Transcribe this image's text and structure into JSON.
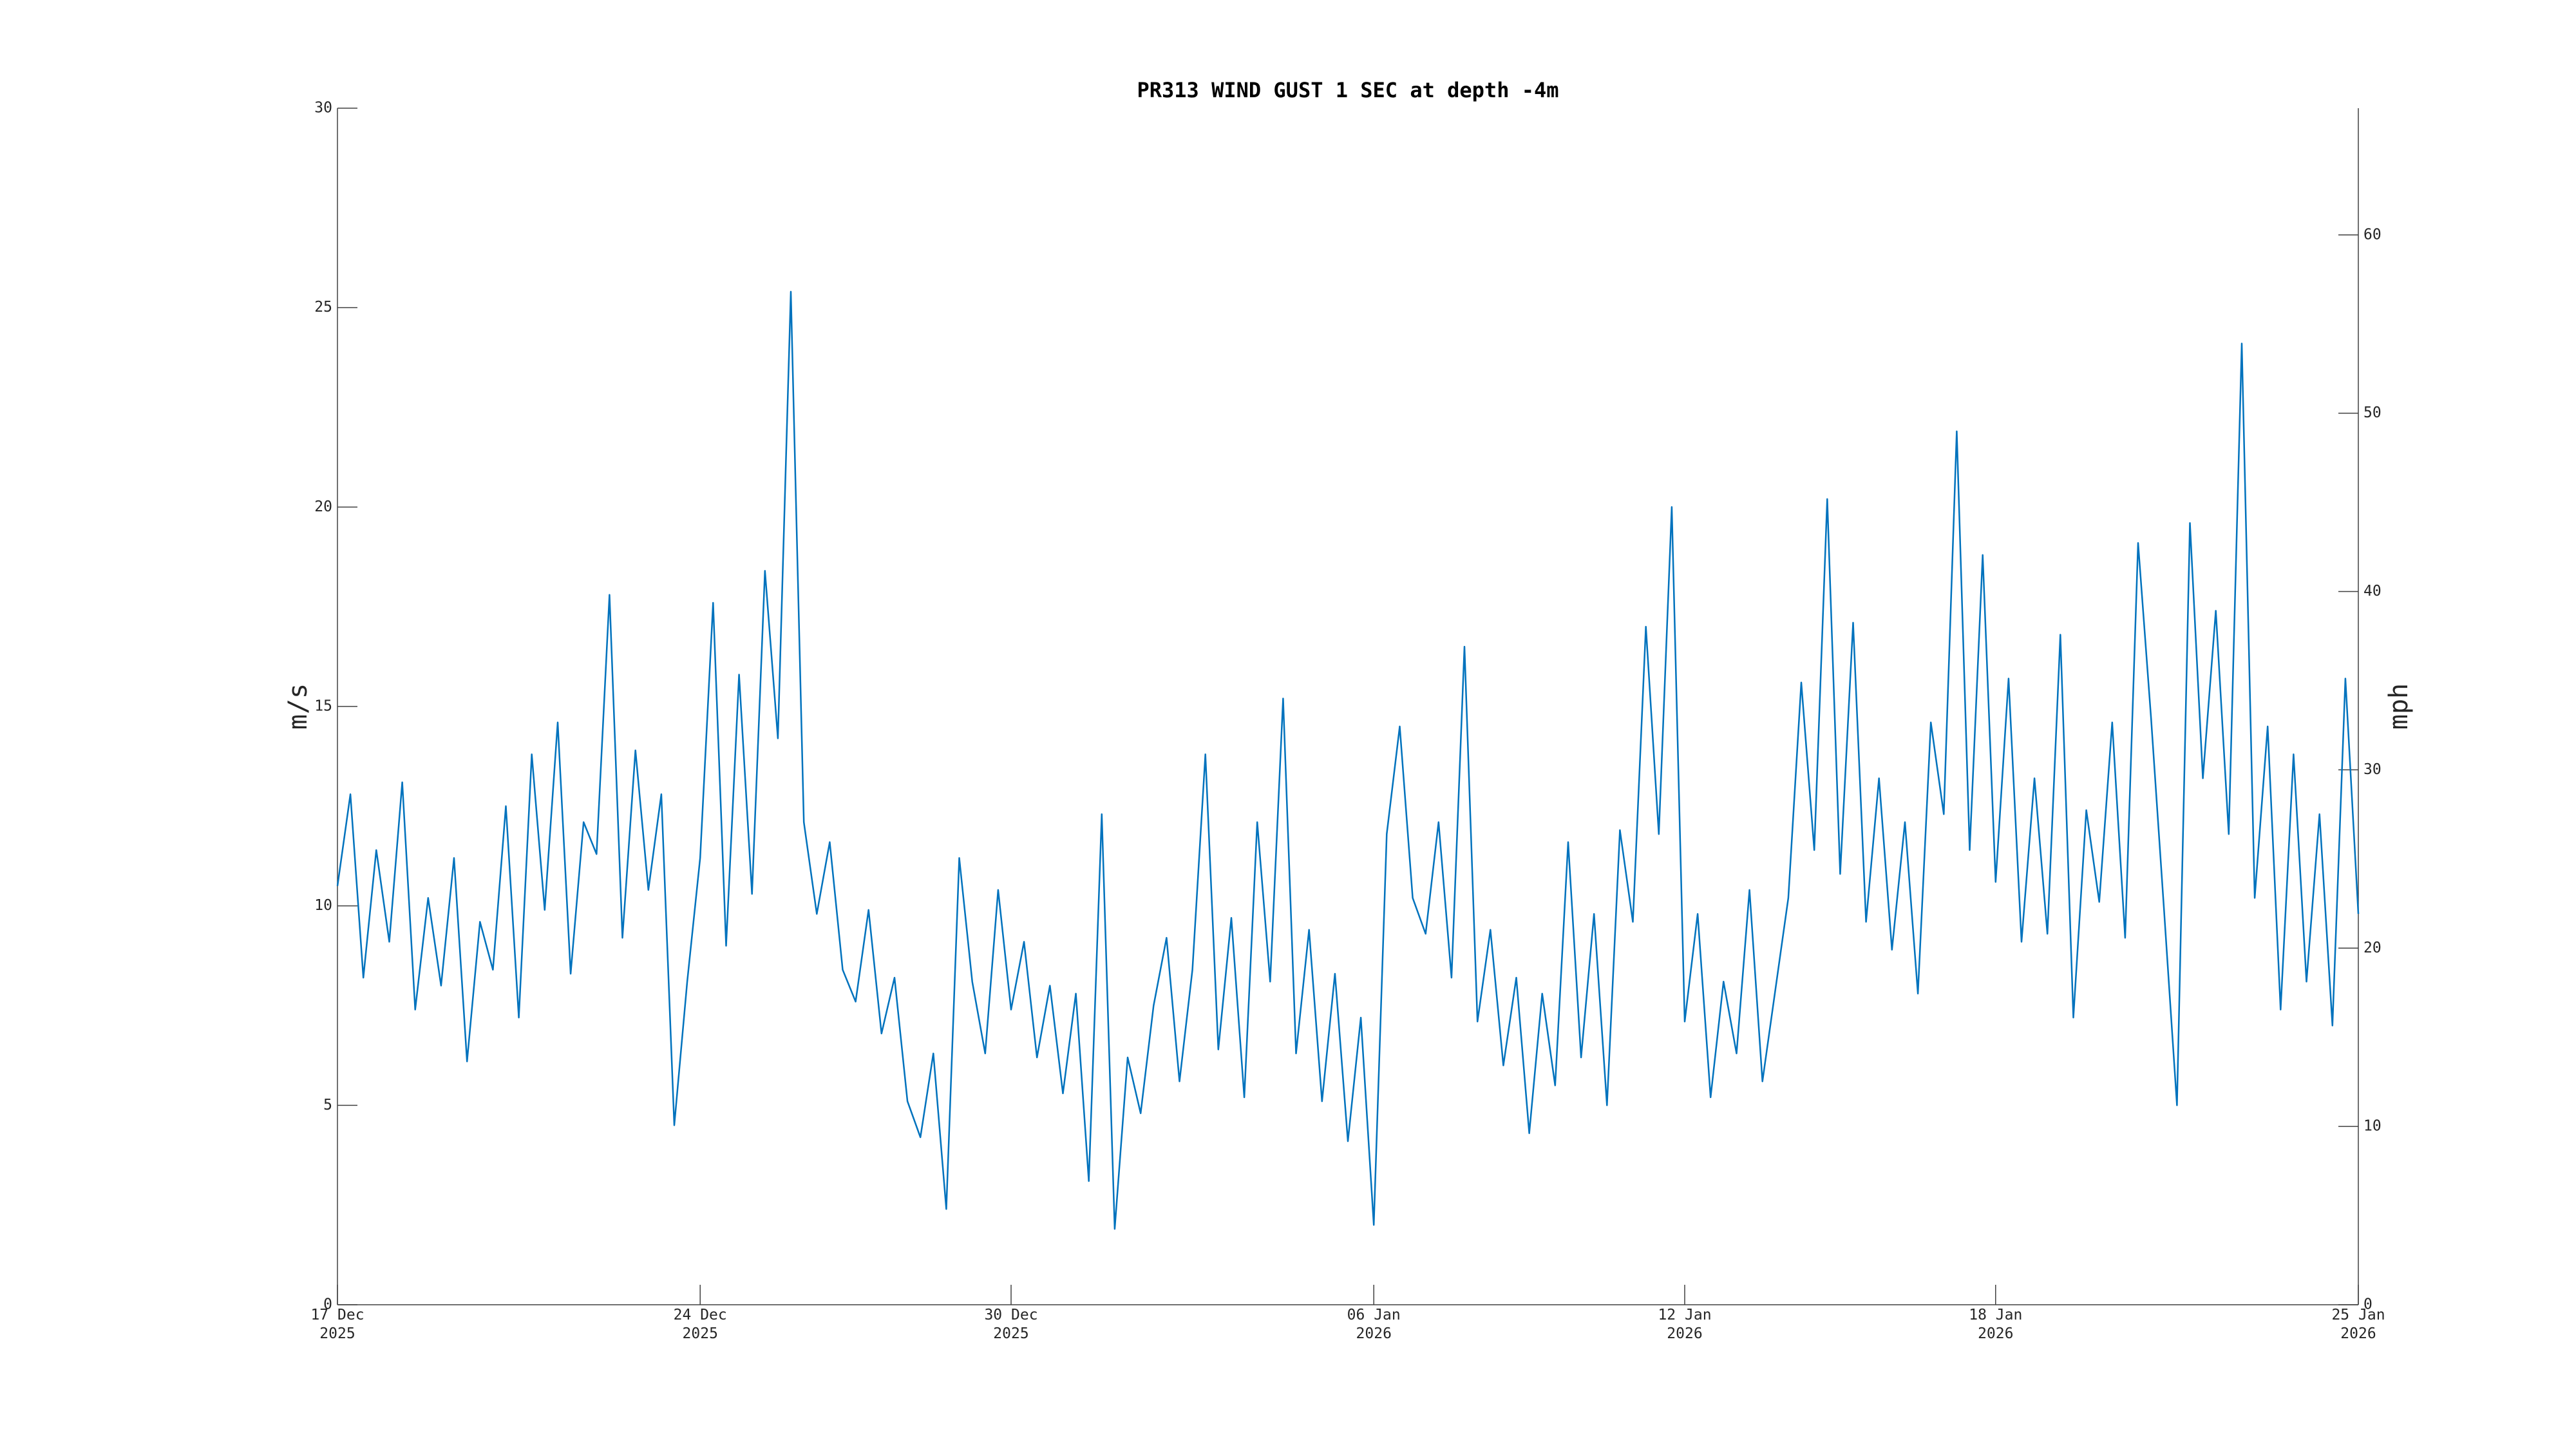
{
  "chart_data": {
    "type": "line",
    "title": "PR313 WIND GUST 1 SEC at depth -4m",
    "ylabel": "m/s",
    "y2label": "mph",
    "color": "#0072bd",
    "xlim": [
      "2025-12-17",
      "2026-01-25"
    ],
    "xticks": [
      {
        "value": "2025-12-17",
        "label": "17 Dec\n2025"
      },
      {
        "value": "2025-12-24",
        "label": "24 Dec\n2025"
      },
      {
        "value": "2025-12-30",
        "label": "30 Dec\n2025"
      },
      {
        "value": "2026-01-06",
        "label": "06 Jan\n2026"
      },
      {
        "value": "2026-01-12",
        "label": "12 Jan\n2026"
      },
      {
        "value": "2026-01-18",
        "label": "18 Jan\n2026"
      },
      {
        "value": "2026-01-25",
        "label": "25 Jan\n2026"
      }
    ],
    "ylim": [
      0,
      30
    ],
    "yticks": [
      0,
      5,
      10,
      15,
      20,
      25,
      30
    ],
    "y2lim": [
      0,
      67.108
    ],
    "y2ticks": [
      0,
      10,
      20,
      30,
      40,
      50,
      60
    ],
    "x": [
      "2025-12-17T00:00",
      "2025-12-17T06:00",
      "2025-12-17T12:00",
      "2025-12-17T18:00",
      "2025-12-18T00:00",
      "2025-12-18T06:00",
      "2025-12-18T12:00",
      "2025-12-18T18:00",
      "2025-12-19T00:00",
      "2025-12-19T06:00",
      "2025-12-19T12:00",
      "2025-12-19T18:00",
      "2025-12-20T00:00",
      "2025-12-20T06:00",
      "2025-12-20T12:00",
      "2025-12-20T18:00",
      "2025-12-21T00:00",
      "2025-12-21T06:00",
      "2025-12-21T12:00",
      "2025-12-21T18:00",
      "2025-12-22T00:00",
      "2025-12-22T06:00",
      "2025-12-22T12:00",
      "2025-12-22T18:00",
      "2025-12-23T00:00",
      "2025-12-23T06:00",
      "2025-12-23T12:00",
      "2025-12-23T18:00",
      "2025-12-24T00:00",
      "2025-12-24T06:00",
      "2025-12-24T12:00",
      "2025-12-24T18:00",
      "2025-12-25T00:00",
      "2025-12-25T06:00",
      "2025-12-25T12:00",
      "2025-12-25T18:00",
      "2025-12-26T00:00",
      "2025-12-26T06:00",
      "2025-12-26T12:00",
      "2025-12-26T18:00",
      "2025-12-27T00:00",
      "2025-12-27T06:00",
      "2025-12-27T12:00",
      "2025-12-27T18:00",
      "2025-12-28T00:00",
      "2025-12-28T06:00",
      "2025-12-28T12:00",
      "2025-12-28T18:00",
      "2025-12-29T00:00",
      "2025-12-29T06:00",
      "2025-12-29T12:00",
      "2025-12-29T18:00",
      "2025-12-30T00:00",
      "2025-12-30T06:00",
      "2025-12-30T12:00",
      "2025-12-30T18:00",
      "2025-12-31T00:00",
      "2025-12-31T06:00",
      "2025-12-31T12:00",
      "2025-12-31T18:00",
      "2026-01-01T00:00",
      "2026-01-01T06:00",
      "2026-01-01T12:00",
      "2026-01-01T18:00",
      "2026-01-02T00:00",
      "2026-01-02T06:00",
      "2026-01-02T12:00",
      "2026-01-02T18:00",
      "2026-01-03T00:00",
      "2026-01-03T06:00",
      "2026-01-03T12:00",
      "2026-01-03T18:00",
      "2026-01-04T00:00",
      "2026-01-04T06:00",
      "2026-01-04T12:00",
      "2026-01-04T18:00",
      "2026-01-05T00:00",
      "2026-01-05T06:00",
      "2026-01-05T12:00",
      "2026-01-05T18:00",
      "2026-01-06T00:00",
      "2026-01-06T06:00",
      "2026-01-06T12:00",
      "2026-01-06T18:00",
      "2026-01-07T00:00",
      "2026-01-07T06:00",
      "2026-01-07T12:00",
      "2026-01-07T18:00",
      "2026-01-08T00:00",
      "2026-01-08T06:00",
      "2026-01-08T12:00",
      "2026-01-08T18:00",
      "2026-01-09T00:00",
      "2026-01-09T06:00",
      "2026-01-09T12:00",
      "2026-01-09T18:00",
      "2026-01-10T00:00",
      "2026-01-10T06:00",
      "2026-01-10T12:00",
      "2026-01-10T18:00",
      "2026-01-11T00:00",
      "2026-01-11T06:00",
      "2026-01-11T12:00",
      "2026-01-11T18:00",
      "2026-01-12T00:00",
      "2026-01-12T06:00",
      "2026-01-12T12:00",
      "2026-01-12T18:00",
      "2026-01-13T00:00",
      "2026-01-13T06:00",
      "2026-01-13T12:00",
      "2026-01-13T18:00",
      "2026-01-14T00:00",
      "2026-01-14T06:00",
      "2026-01-14T12:00",
      "2026-01-14T18:00",
      "2026-01-15T00:00",
      "2026-01-15T06:00",
      "2026-01-15T12:00",
      "2026-01-15T18:00",
      "2026-01-16T00:00",
      "2026-01-16T06:00",
      "2026-01-16T12:00",
      "2026-01-16T18:00",
      "2026-01-17T00:00",
      "2026-01-17T06:00",
      "2026-01-17T12:00",
      "2026-01-17T18:00",
      "2026-01-18T00:00",
      "2026-01-18T06:00",
      "2026-01-18T12:00",
      "2026-01-18T18:00",
      "2026-01-19T00:00",
      "2026-01-19T06:00",
      "2026-01-19T12:00",
      "2026-01-19T18:00",
      "2026-01-20T00:00",
      "2026-01-20T06:00",
      "2026-01-20T12:00",
      "2026-01-20T18:00",
      "2026-01-21T00:00",
      "2026-01-21T06:00",
      "2026-01-21T12:00",
      "2026-01-21T18:00",
      "2026-01-22T00:00",
      "2026-01-22T06:00",
      "2026-01-22T12:00",
      "2026-01-22T18:00",
      "2026-01-23T00:00",
      "2026-01-23T06:00",
      "2026-01-23T12:00",
      "2026-01-23T18:00",
      "2026-01-24T00:00",
      "2026-01-24T06:00",
      "2026-01-24T12:00",
      "2026-01-24T18:00",
      "2026-01-25T00:00"
    ],
    "values": [
      10.5,
      12.8,
      8.2,
      11.4,
      9.1,
      13.1,
      7.4,
      10.2,
      8.0,
      11.2,
      6.1,
      9.6,
      8.4,
      12.5,
      7.2,
      13.8,
      9.9,
      14.6,
      8.3,
      12.1,
      11.3,
      17.8,
      9.2,
      13.9,
      10.4,
      12.8,
      4.5,
      8.1,
      11.2,
      17.6,
      9.0,
      15.8,
      10.3,
      18.4,
      14.2,
      25.4,
      12.1,
      9.8,
      11.6,
      8.4,
      7.6,
      9.9,
      6.8,
      8.2,
      5.1,
      4.2,
      6.3,
      2.4,
      11.2,
      8.1,
      6.3,
      10.4,
      7.4,
      9.1,
      6.2,
      8.0,
      5.3,
      7.8,
      3.1,
      12.3,
      1.9,
      6.2,
      4.8,
      7.5,
      9.2,
      5.6,
      8.4,
      13.8,
      6.4,
      9.7,
      5.2,
      12.1,
      8.1,
      15.2,
      6.3,
      9.4,
      5.1,
      8.3,
      4.1,
      7.2,
      2.0,
      11.8,
      14.5,
      10.2,
      9.3,
      12.1,
      8.2,
      16.5,
      7.1,
      9.4,
      6.0,
      8.2,
      4.3,
      7.8,
      5.5,
      11.6,
      6.2,
      9.8,
      5.0,
      11.9,
      9.6,
      17.0,
      11.8,
      20.0,
      7.1,
      9.8,
      5.2,
      8.1,
      6.3,
      10.4,
      5.6,
      7.9,
      10.2,
      15.6,
      11.4,
      20.2,
      10.8,
      17.1,
      9.6,
      13.2,
      8.9,
      12.1,
      7.8,
      14.6,
      12.3,
      21.9,
      11.4,
      18.8,
      10.6,
      15.7,
      9.1,
      13.2,
      9.3,
      16.8,
      7.2,
      12.4,
      10.1,
      14.6,
      9.2,
      19.1,
      14.7,
      9.9,
      5.0,
      19.6,
      13.2,
      17.4,
      11.8,
      24.1,
      10.2,
      14.5,
      7.4,
      13.8,
      8.1,
      12.3,
      7.0,
      15.7,
      9.8
    ]
  }
}
